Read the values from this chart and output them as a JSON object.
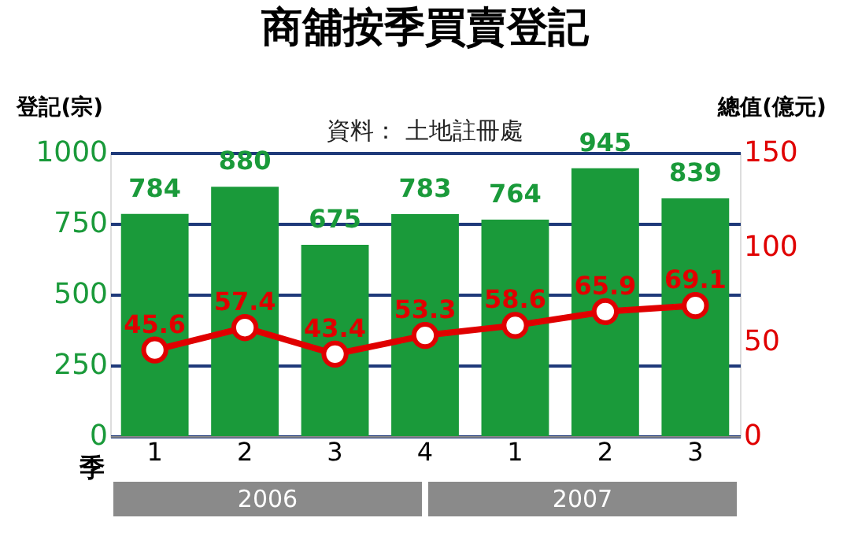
{
  "chart_data": {
    "type": "bar",
    "title": "商舖按季買賣登記",
    "subtitle": "資料： 土地註冊處",
    "xlabel": "季",
    "ylabel": "登記(宗)",
    "y2label": "總值(億元)",
    "categories": [
      "1",
      "2",
      "3",
      "4",
      "1",
      "2",
      "3"
    ],
    "series": [
      {
        "color": "#1a9a3a",
        "values": [
          784,
          880,
          675,
          783,
          764,
          945,
          839
        ]
      },
      {
        "type": "line",
        "axis": "y2",
        "color": "#e00000",
        "marker": "circle",
        "values": [
          45.6,
          57.4,
          43.4,
          53.3,
          58.6,
          65.9,
          69.1
        ]
      }
    ],
    "ylim": [
      0,
      1000
    ],
    "yticks": [
      0,
      250,
      500,
      750,
      1000
    ],
    "y2lim": [
      0,
      150
    ],
    "y2ticks": [
      0,
      50,
      100,
      150
    ],
    "grid": "y",
    "data_labels": true,
    "annotations": [
      "2006",
      "2007"
    ]
  }
}
